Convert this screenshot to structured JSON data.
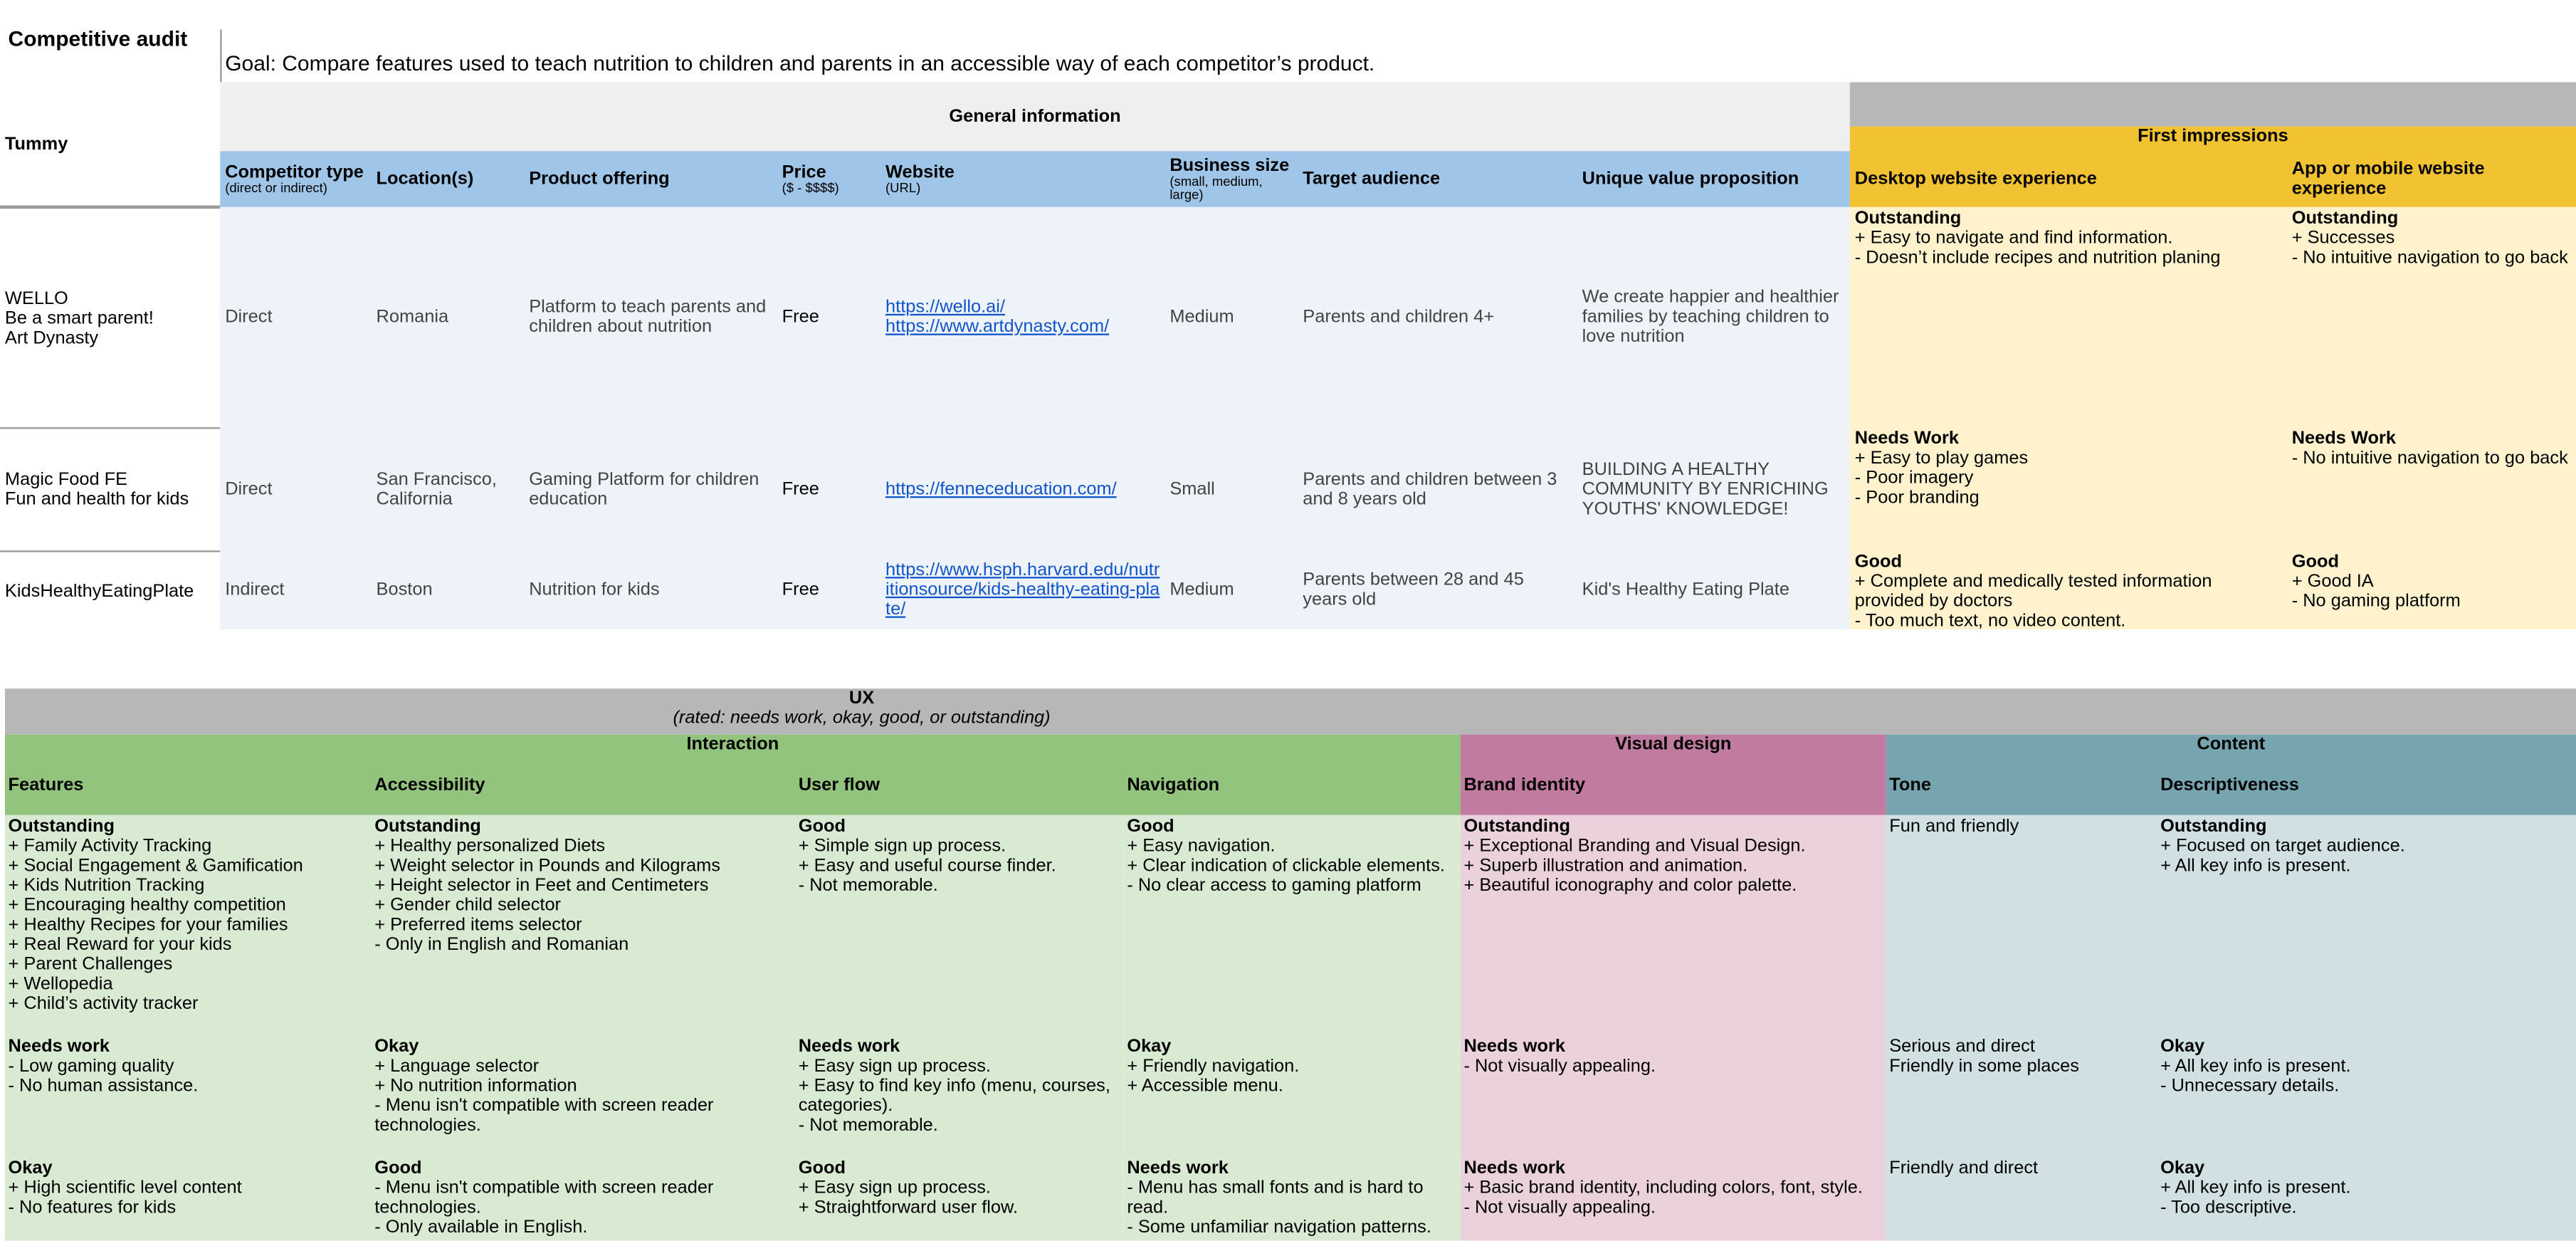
{
  "title": "Competitive audit",
  "goal": "Goal: Compare features used to teach nutrition to children and parents in an accessible way of each competitor’s product.",
  "product": "Tummy",
  "general": {
    "header": "General information",
    "columns": [
      {
        "name": "Competitor type",
        "note": "(direct or indirect)"
      },
      {
        "name": "Location(s)"
      },
      {
        "name": "Product offering"
      },
      {
        "name": "Price",
        "note": "($ - $$$$)"
      },
      {
        "name": "Website",
        "note": "(URL)"
      },
      {
        "name": "Business size",
        "note": "(small, medium, large)"
      },
      {
        "name": "Target audience"
      },
      {
        "name": "Unique value proposition"
      }
    ],
    "rows": [
      {
        "competitor": [
          "WELLO",
          "Be a smart parent!",
          "Art Dynasty"
        ],
        "cells": [
          "Direct",
          "Romania",
          "Platform to teach parents and children about nutrition",
          "Free",
          [
            "https://wello.ai/",
            "https://www.artdynasty.com/"
          ],
          "Medium",
          "Parents and children 4+",
          "We create happier and healthier families by teaching children to love nutrition"
        ]
      },
      {
        "competitor": [
          "Magic Food FE",
          "Fun and health for kids"
        ],
        "cells": [
          "Direct",
          "San Francisco, California",
          "Gaming Platform for children education",
          "Free",
          [
            "https://fenneceducation.com/"
          ],
          "Small",
          "Parents and children between 3 and 8 years old",
          "BUILDING A HEALTHY COMMUNITY BY ENRICHING YOUTHS' KNOWLEDGE!"
        ]
      },
      {
        "competitor": [
          "KidsHealthyEatingPlate"
        ],
        "cells": [
          "Indirect",
          "Boston",
          "Nutrition for kids",
          "Free",
          [
            "https://www.hsph.harvard.edu/nutritionsource/kids-healthy-eating-plate/"
          ],
          "Medium",
          "Parents between 28 and 45 years old",
          "Kid's Healthy Eating Plate"
        ]
      }
    ]
  },
  "first_impressions": {
    "header": "First impressions",
    "columns": [
      "Desktop website experience",
      "App or mobile website experience"
    ],
    "rows": [
      [
        {
          "rating": "Outstanding",
          "lines": [
            "+ Easy to navigate and find information.",
            "- Doesn’t include recipes and nutrition planing"
          ]
        },
        {
          "rating": "Outstanding",
          "lines": [
            "+ Successes",
            "- No intuitive navigation to go back"
          ]
        }
      ],
      [
        {
          "rating": "Needs Work",
          "lines": [
            "+ Easy to play games",
            "-  Poor imagery",
            "-  Poor branding"
          ]
        },
        {
          "rating": "Needs Work",
          "lines": [
            "- No intuitive navigation to go back"
          ]
        }
      ],
      [
        {
          "rating": "Good",
          "lines": [
            "+ Complete and medically tested information provided by doctors",
            "- Too much text, no video content."
          ]
        },
        {
          "rating": "Good",
          "lines": [
            "+ Good IA",
            "-  No gaming platform"
          ]
        }
      ]
    ]
  },
  "ux": {
    "header": "UX",
    "note": "(rated: needs work, okay, good, or outstanding)",
    "groups": [
      {
        "name": "Interaction",
        "columns": [
          "Features",
          "Accessibility",
          "User flow",
          "Navigation"
        ]
      },
      {
        "name": "Visual design",
        "columns": [
          "Brand identity"
        ]
      },
      {
        "name": "Content",
        "columns": [
          "Tone",
          "Descriptiveness"
        ]
      }
    ],
    "rows": [
      [
        {
          "rating": "Outstanding",
          "lines": [
            "+ Family Activity Tracking",
            "+ Social Engagement & Gamification",
            "+ Kids Nutrition Tracking",
            "+ Encouraging healthy competition",
            "+ Healthy Recipes for your families",
            "+ Real Reward for your kids",
            "+ Parent Challenges",
            "+ Wellopedia",
            "+ Child’s activity tracker"
          ]
        },
        {
          "rating": "Outstanding",
          "lines": [
            "+ Healthy personalized Diets",
            "+ Weight selector in Pounds and Kilograms",
            "+ Height selector in Feet and Centimeters",
            "+ Gender child selector",
            "+ Preferred items selector",
            "- Only in English and Romanian"
          ]
        },
        {
          "rating": "Good",
          "lines": [
            "+ Simple sign up process.",
            "+ Easy and useful course finder.",
            "- Not memorable."
          ]
        },
        {
          "rating": "Good",
          "lines": [
            "+ Easy navigation.",
            "+ Clear indication of clickable elements.",
            "- No clear access to gaming platform"
          ]
        },
        {
          "rating": "Outstanding",
          "lines": [
            "+ Exceptional Branding and Visual Design.",
            "+ Superb illustration and animation.",
            "+ Beautiful iconography and color palette."
          ]
        },
        {
          "lines": [
            "Fun and friendly"
          ]
        },
        {
          "rating": "Outstanding",
          "lines": [
            "+ Focused on target audience.",
            "+ All key info is present."
          ]
        }
      ],
      [
        {
          "rating": "Needs work",
          "lines": [
            "- Low gaming quality",
            "- No human assistance."
          ]
        },
        {
          "rating": "Okay",
          "lines": [
            "+ Language selector",
            "+  No nutrition information",
            "- Menu isn't compatible with screen reader technologies."
          ]
        },
        {
          "rating": "Needs work",
          "lines": [
            "+ Easy sign up process.",
            "+ Easy to find key info (menu, courses, categories).",
            "- Not memorable."
          ]
        },
        {
          "rating": "Okay",
          "lines": [
            "+ Friendly navigation.",
            "+ Accessible menu."
          ]
        },
        {
          "rating": "Needs work",
          "lines": [
            "- Not visually appealing."
          ]
        },
        {
          "lines": [
            "Serious and direct",
            "Friendly in some places"
          ]
        },
        {
          "rating": "Okay",
          "lines": [
            "+ All key info is present.",
            "- Unnecessary details."
          ]
        }
      ],
      [
        {
          "rating": "Okay",
          "lines": [
            "+ High scientific level content",
            "- No features for kids"
          ]
        },
        {
          "rating": "Good",
          "lines": [
            "- Menu isn't compatible with screen reader technologies.",
            "- Only available in English."
          ]
        },
        {
          "rating": "Good",
          "lines": [
            "+ Easy sign up process.",
            "+ Straightforward user flow."
          ]
        },
        {
          "rating": "Needs work",
          "lines": [
            "- Menu has small fonts and is hard to read.",
            "- Some unfamiliar navigation patterns."
          ]
        },
        {
          "rating": "Needs work",
          "lines": [
            "+ Basic brand identity, including colors, font, style.",
            "- Not visually appealing."
          ]
        },
        {
          "lines": [
            "Friendly and direct"
          ]
        },
        {
          "rating": "Okay",
          "lines": [
            "+ All key info is present.",
            "- Too descriptive."
          ]
        }
      ]
    ]
  }
}
